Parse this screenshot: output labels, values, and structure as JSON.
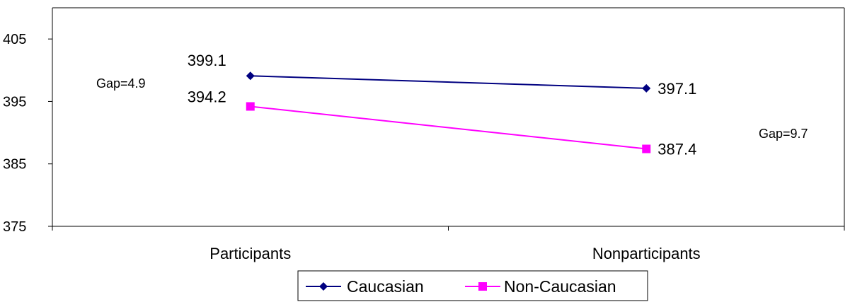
{
  "chart_data": {
    "type": "line",
    "categories": [
      "Participants",
      "Nonparticipants"
    ],
    "series": [
      {
        "name": "Caucasian",
        "values": [
          399.1,
          397.1
        ],
        "color": "#000080",
        "marker": "diamond"
      },
      {
        "name": "Non-Caucasian",
        "values": [
          394.2,
          387.4
        ],
        "color": "#ff00ff",
        "marker": "square"
      }
    ],
    "data_labels": {
      "Caucasian": [
        "399.1",
        "397.1"
      ],
      "Non-Caucasian": [
        "394.2",
        "387.4"
      ]
    },
    "ylim": [
      375,
      410
    ],
    "yticks": [
      "405",
      "395",
      "385",
      "375"
    ],
    "annotations": [
      "Gap=4.9",
      "Gap=9.7"
    ],
    "legend_position": "bottom",
    "grid": false
  }
}
